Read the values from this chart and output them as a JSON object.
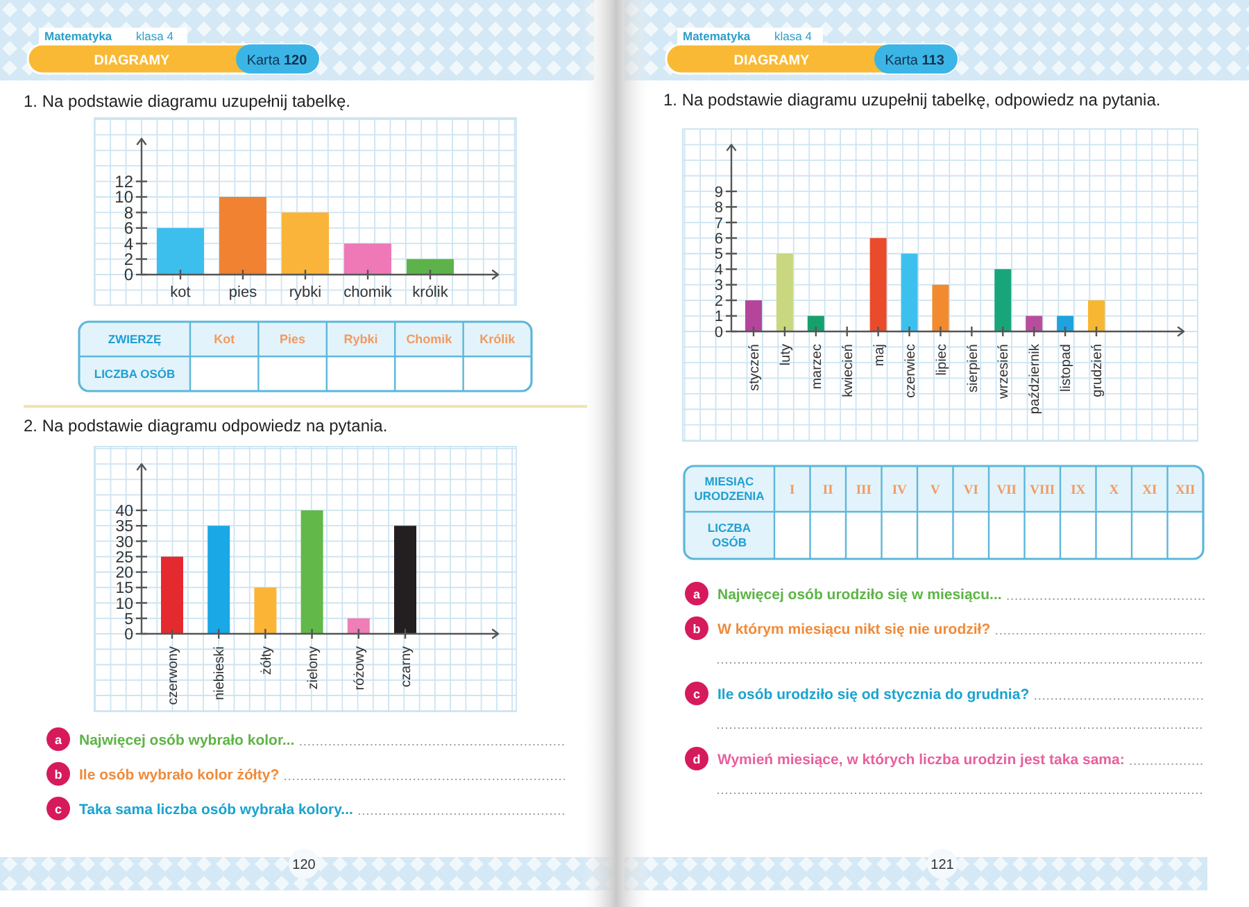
{
  "chart_data": [
    {
      "type": "bar",
      "title": "1. Na podstawie diagramu uzupełnij tabelkę.",
      "categories": [
        "kot",
        "pies",
        "rybki",
        "chomik",
        "królik"
      ],
      "values": [
        6,
        10,
        8,
        4,
        2
      ],
      "colors": [
        "#3cbfec",
        "#f08232",
        "#fbb43a",
        "#ee79b6",
        "#5db34a"
      ],
      "ylim": [
        0,
        17.5
      ],
      "yticks": [
        0,
        2,
        4,
        6,
        8,
        10,
        12
      ],
      "grid": true,
      "annotations": [
        "Matematyka",
        "klasa 4",
        "DIAGRAMY",
        "Karta 120",
        "ZWIERZĘ",
        "Kot",
        "Pies",
        "Rybki",
        "Chomik",
        "Królik",
        "LICZBA OSÓB"
      ]
    },
    {
      "type": "bar",
      "title": "2. Na podstawie diagramu odpowiedz na pytania.",
      "categories": [
        "czerwony",
        "niebieski",
        "żółty",
        "zielony",
        "różowy",
        "czarny"
      ],
      "values": [
        25,
        35,
        15,
        40,
        5,
        35
      ],
      "colors": [
        "#e52a2f",
        "#1aa8e6",
        "#fbb435",
        "#63b84a",
        "#ee7eb5",
        "#231f20"
      ],
      "ylim": [
        0,
        55
      ],
      "yticks": [
        0,
        5,
        10,
        15,
        20,
        25,
        30,
        35,
        40
      ],
      "grid": true,
      "annotations": [
        "a",
        "Najwięcej osób wybrało kolor...",
        "b",
        "Ile osób wybrało kolor żółty?",
        "c",
        "Taka sama liczba osób wybrała kolory...",
        "120"
      ]
    },
    {
      "type": "bar",
      "title": "1. Na podstawie diagramu uzupełnij tabelkę, odpowiedz na pytania.",
      "categories": [
        "styczeń",
        "luty",
        "marzec",
        "kwiecień",
        "maj",
        "czerwiec",
        "lipiec",
        "sierpień",
        "wrzesień",
        "październik",
        "listopad",
        "grudzień"
      ],
      "values": [
        2,
        5,
        1,
        0,
        6,
        5,
        3,
        0,
        4,
        1,
        1,
        2
      ],
      "colors": [
        "#b5459b",
        "#c9d77f",
        "#17a06b",
        "#9e9e9e",
        "#ea4b2a",
        "#3ec0ee",
        "#f28a30",
        "#9e9e9e",
        "#18a57a",
        "#b84d9e",
        "#1ea3de",
        "#f8b733"
      ],
      "ylim": [
        0,
        12
      ],
      "yticks": [
        0,
        1,
        2,
        3,
        4,
        5,
        6,
        7,
        8,
        9
      ],
      "grid": true,
      "annotations": [
        "Matematyka",
        "klasa 4",
        "DIAGRAMY",
        "Karta 113",
        "MIESIĄC URODZENIA",
        "I",
        "II",
        "III",
        "IV",
        "V",
        "VI",
        "VII",
        "VIII",
        "IX",
        "X",
        "XI",
        "XII",
        "LICZBA OSÓB",
        "a",
        "Najwięcej osób urodziło się w miesiącu...",
        "b",
        "W którym miesiącu nikt się nie urodził?",
        "c",
        "Ile osób urodziło się od stycznia do grudnia?",
        "d",
        "Wymień miesiące, w których liczba urodzin jest taka sama:",
        "121"
      ]
    }
  ]
}
